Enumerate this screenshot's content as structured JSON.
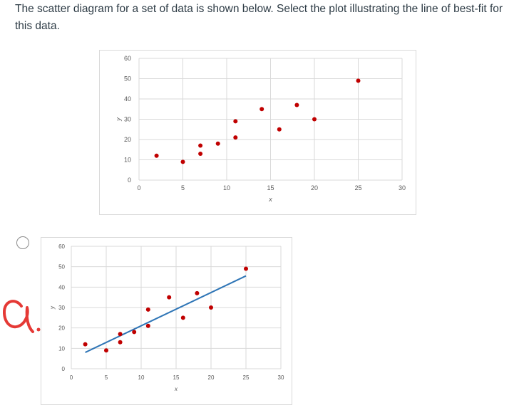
{
  "question": {
    "text": "The scatter diagram for a set of data is shown below.  Select the plot illustrating the line of best-fit for this data."
  },
  "annotation": {
    "text": "a.",
    "color": "#e53935"
  },
  "colors": {
    "points": "#c00000",
    "fit_line": "#2e75b6",
    "grid": "#d9d9d9",
    "tick_label": "#595959"
  },
  "chart_data": [
    {
      "type": "scatter",
      "title": "",
      "xlabel": "x",
      "ylabel": "y",
      "xlim": [
        0,
        30
      ],
      "ylim": [
        0,
        60
      ],
      "xticks": [
        0,
        5,
        10,
        15,
        20,
        25,
        30
      ],
      "yticks": [
        0,
        10,
        20,
        30,
        40,
        50,
        60
      ],
      "grid": true,
      "points": [
        {
          "x": 2,
          "y": 12
        },
        {
          "x": 5,
          "y": 9
        },
        {
          "x": 7,
          "y": 13
        },
        {
          "x": 7,
          "y": 17
        },
        {
          "x": 9,
          "y": 18
        },
        {
          "x": 11,
          "y": 21
        },
        {
          "x": 11,
          "y": 29
        },
        {
          "x": 14,
          "y": 35
        },
        {
          "x": 16,
          "y": 25
        },
        {
          "x": 18,
          "y": 37
        },
        {
          "x": 20,
          "y": 30
        },
        {
          "x": 25,
          "y": 49
        }
      ]
    },
    {
      "type": "scatter",
      "title": "",
      "xlabel": "x",
      "ylabel": "y",
      "xlim": [
        0,
        30
      ],
      "ylim": [
        0,
        60
      ],
      "xticks": [
        0,
        5,
        10,
        15,
        20,
        25,
        30
      ],
      "yticks": [
        0,
        10,
        20,
        30,
        40,
        50,
        60
      ],
      "grid": true,
      "points": [
        {
          "x": 2,
          "y": 12
        },
        {
          "x": 5,
          "y": 9
        },
        {
          "x": 7,
          "y": 13
        },
        {
          "x": 7,
          "y": 17
        },
        {
          "x": 9,
          "y": 18
        },
        {
          "x": 11,
          "y": 21
        },
        {
          "x": 11,
          "y": 29
        },
        {
          "x": 14,
          "y": 35
        },
        {
          "x": 16,
          "y": 25
        },
        {
          "x": 18,
          "y": 37
        },
        {
          "x": 20,
          "y": 30
        },
        {
          "x": 25,
          "y": 49
        }
      ],
      "fit_line": {
        "x1": 2,
        "y1": 8,
        "x2": 25,
        "y2": 45.5
      }
    }
  ]
}
